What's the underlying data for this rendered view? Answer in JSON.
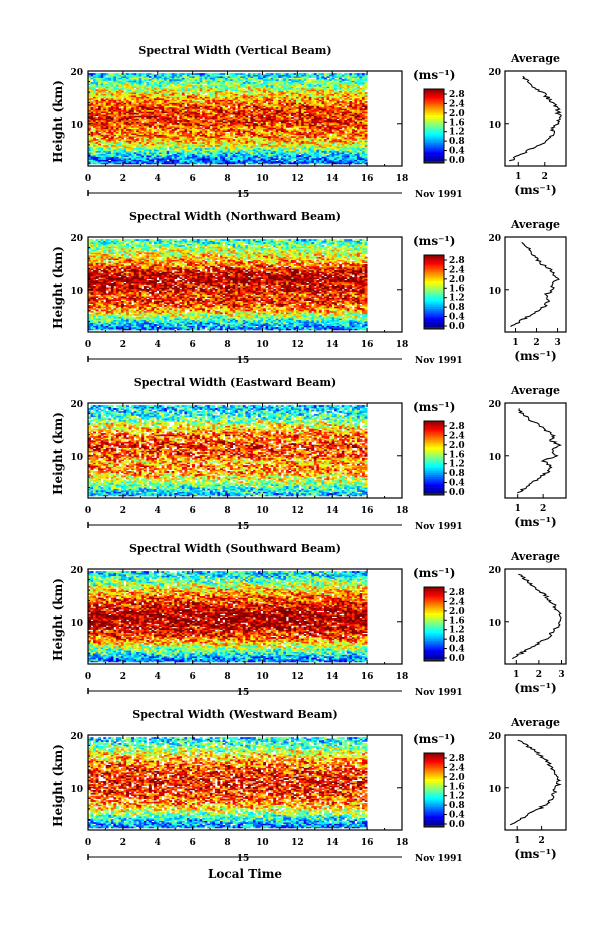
{
  "figure": {
    "xlabel": "Local Time",
    "date_label": "Nov 1991",
    "date_day": "15",
    "colorbar_unit": "(ms⁻¹)",
    "average_title": "Average"
  },
  "chart_data": [
    {
      "type": "heatmap",
      "title": "Spectral Width (Vertical Beam)",
      "xlabel": "",
      "ylabel": "Height (km)",
      "xlim": [
        0,
        18
      ],
      "ylim": [
        2,
        20
      ],
      "xticks": [
        "0",
        "2",
        "4",
        "6",
        "8",
        "10",
        "12",
        "14",
        "16",
        "18"
      ],
      "yticks": [
        "10",
        "20"
      ],
      "x_data_range": [
        0,
        16
      ],
      "colorbar": {
        "ticks": [
          "0.0",
          "0.4",
          "0.8",
          "1.2",
          "1.6",
          "2.0",
          "2.4",
          "2.8"
        ],
        "range": [
          0,
          3.0
        ]
      },
      "profile": {
        "xlabel": "(ms⁻¹)",
        "xlim": [
          0.5,
          2.8
        ],
        "xticks": [
          1,
          2
        ],
        "heights": [
          3,
          4,
          5,
          6,
          7,
          8,
          9,
          10,
          11,
          12,
          13,
          14,
          15,
          16,
          17,
          18,
          19
        ],
        "values": [
          0.7,
          1.0,
          1.4,
          1.8,
          2.1,
          2.3,
          2.3,
          2.5,
          2.6,
          2.5,
          2.5,
          2.3,
          2.1,
          1.9,
          1.6,
          1.4,
          1.1
        ]
      }
    },
    {
      "type": "heatmap",
      "title": "Spectral Width (Northward Beam)",
      "xlabel": "",
      "ylabel": "Height (km)",
      "xlim": [
        0,
        18
      ],
      "ylim": [
        2,
        20
      ],
      "xticks": [
        "0",
        "2",
        "4",
        "6",
        "8",
        "10",
        "12",
        "14",
        "16",
        "18"
      ],
      "yticks": [
        "10",
        "20"
      ],
      "x_data_range": [
        0,
        16
      ],
      "colorbar": {
        "ticks": [
          "0.0",
          "0.4",
          "0.8",
          "1.2",
          "1.6",
          "2.0",
          "2.4",
          "2.8"
        ],
        "range": [
          0,
          3.0
        ]
      },
      "profile": {
        "xlabel": "(ms⁻¹)",
        "xlim": [
          0.5,
          3.4
        ],
        "xticks": [
          1,
          2,
          3
        ],
        "heights": [
          3,
          4,
          5,
          6,
          7,
          8,
          9,
          10,
          11,
          12,
          13,
          14,
          15,
          16,
          17,
          18,
          19
        ],
        "values": [
          0.8,
          1.2,
          1.6,
          2.1,
          2.4,
          2.6,
          2.4,
          2.8,
          2.7,
          3.0,
          2.8,
          2.6,
          2.2,
          2.0,
          1.8,
          1.6,
          1.3
        ]
      }
    },
    {
      "type": "heatmap",
      "title": "Spectral Width (Eastward Beam)",
      "xlabel": "",
      "ylabel": "Height (km)",
      "xlim": [
        0,
        18
      ],
      "ylim": [
        2,
        20
      ],
      "xticks": [
        "0",
        "2",
        "4",
        "6",
        "8",
        "10",
        "12",
        "14",
        "16",
        "18"
      ],
      "yticks": [
        "10",
        "20"
      ],
      "x_data_range": [
        0,
        16
      ],
      "colorbar": {
        "ticks": [
          "0.0",
          "0.4",
          "0.8",
          "1.2",
          "1.6",
          "2.0",
          "2.4",
          "2.8"
        ],
        "range": [
          0,
          3.0
        ]
      },
      "profile": {
        "xlabel": "(ms⁻¹)",
        "xlim": [
          0.5,
          2.9
        ],
        "xticks": [
          1,
          2
        ],
        "heights": [
          3,
          4,
          5,
          6,
          7,
          8,
          9,
          10,
          11,
          12,
          13,
          14,
          15,
          16,
          17,
          18,
          19
        ],
        "values": [
          1.0,
          1.3,
          1.6,
          1.9,
          2.2,
          2.3,
          2.0,
          2.5,
          2.4,
          2.6,
          2.3,
          2.4,
          2.0,
          1.8,
          1.4,
          1.2,
          1.0
        ]
      }
    },
    {
      "type": "heatmap",
      "title": "Spectral Width (Southward Beam)",
      "xlabel": "",
      "ylabel": "Height (km)",
      "xlim": [
        0,
        18
      ],
      "ylim": [
        2,
        20
      ],
      "xticks": [
        "0",
        "2",
        "4",
        "6",
        "8",
        "10",
        "12",
        "14",
        "16",
        "18"
      ],
      "yticks": [
        "10",
        "20"
      ],
      "x_data_range": [
        0,
        16
      ],
      "colorbar": {
        "ticks": [
          "0.0",
          "0.4",
          "0.8",
          "1.2",
          "1.6",
          "2.0",
          "2.4",
          "2.8"
        ],
        "range": [
          0,
          3.0
        ]
      },
      "profile": {
        "xlabel": "(ms⁻¹)",
        "xlim": [
          0.5,
          3.2
        ],
        "xticks": [
          1,
          2,
          3
        ],
        "heights": [
          3,
          4,
          5,
          6,
          7,
          8,
          9,
          10,
          11,
          12,
          13,
          14,
          15,
          16,
          17,
          18,
          19
        ],
        "values": [
          0.8,
          1.2,
          1.6,
          2.0,
          2.4,
          2.6,
          2.8,
          2.9,
          3.0,
          2.8,
          2.7,
          2.5,
          2.3,
          2.0,
          1.7,
          1.4,
          1.1
        ]
      }
    },
    {
      "type": "heatmap",
      "title": "Spectral Width (Westward Beam)",
      "xlabel": "Local Time",
      "ylabel": "Height (km)",
      "xlim": [
        0,
        18
      ],
      "ylim": [
        2,
        20
      ],
      "xticks": [
        "0",
        "2",
        "4",
        "6",
        "8",
        "10",
        "12",
        "14",
        "16",
        "18"
      ],
      "yticks": [
        "10",
        "20"
      ],
      "x_data_range": [
        0,
        16
      ],
      "colorbar": {
        "ticks": [
          "0.0",
          "0.4",
          "0.8",
          "1.2",
          "1.6",
          "2.0",
          "2.4",
          "2.8"
        ],
        "range": [
          0,
          3.0
        ]
      },
      "profile": {
        "xlabel": "(ms⁻¹)",
        "xlim": [
          0.5,
          3.0
        ],
        "xticks": [
          1,
          2
        ],
        "heights": [
          3,
          4,
          5,
          6,
          7,
          8,
          9,
          10,
          11,
          12,
          13,
          14,
          15,
          16,
          17,
          18,
          19
        ],
        "values": [
          0.8,
          1.1,
          1.5,
          1.9,
          2.2,
          2.4,
          2.5,
          2.6,
          2.7,
          2.6,
          2.5,
          2.4,
          2.2,
          2.0,
          1.7,
          1.4,
          1.1
        ]
      }
    }
  ]
}
